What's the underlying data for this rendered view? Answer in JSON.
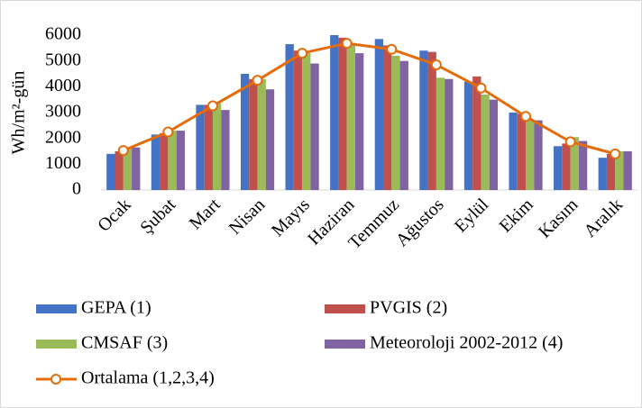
{
  "chart_data": {
    "type": "bar",
    "y_label": "Wh/m²-gün",
    "categories": [
      "Ocak",
      "Şubat",
      "Mart",
      "Nisan",
      "Mayıs",
      "Haziran",
      "Temmuz",
      "Ağustos",
      "Eylül",
      "Ekim",
      "Kasım",
      "Aralık"
    ],
    "series": [
      {
        "name": "GEPA (1)",
        "color": "#4472c4",
        "values": [
          1400,
          2150,
          3300,
          4500,
          5650,
          6000,
          5850,
          5400,
          4200,
          3000,
          1700,
          1250
        ]
      },
      {
        "name": "PVGIS (2)",
        "color": "#c0504d",
        "values": [
          1500,
          2200,
          3300,
          4300,
          5400,
          5900,
          5600,
          5350,
          4400,
          2950,
          1800,
          1400
        ]
      },
      {
        "name": "CMSAF (3)",
        "color": "#9bbb59",
        "values": [
          1600,
          2300,
          3350,
          4300,
          5300,
          5700,
          5200,
          4350,
          3700,
          2700,
          2050,
          1500
        ]
      },
      {
        "name": "Meteoroloji 2002-2012 (4)",
        "color": "#8064a2",
        "values": [
          1650,
          2300,
          3100,
          3900,
          4900,
          5300,
          5000,
          4300,
          3500,
          2700,
          1900,
          1500
        ]
      },
      {
        "name": "Ortalama (1,2,3,4)",
        "color": "#e46c0a",
        "type": "line",
        "values": [
          1530,
          2250,
          3260,
          4250,
          5300,
          5680,
          5450,
          4850,
          3950,
          2850,
          1870,
          1400
        ]
      }
    ],
    "ylim": [
      0,
      6000
    ],
    "yticks": [
      0,
      1000,
      2000,
      3000,
      4000,
      5000,
      6000
    ],
    "grid": false
  }
}
